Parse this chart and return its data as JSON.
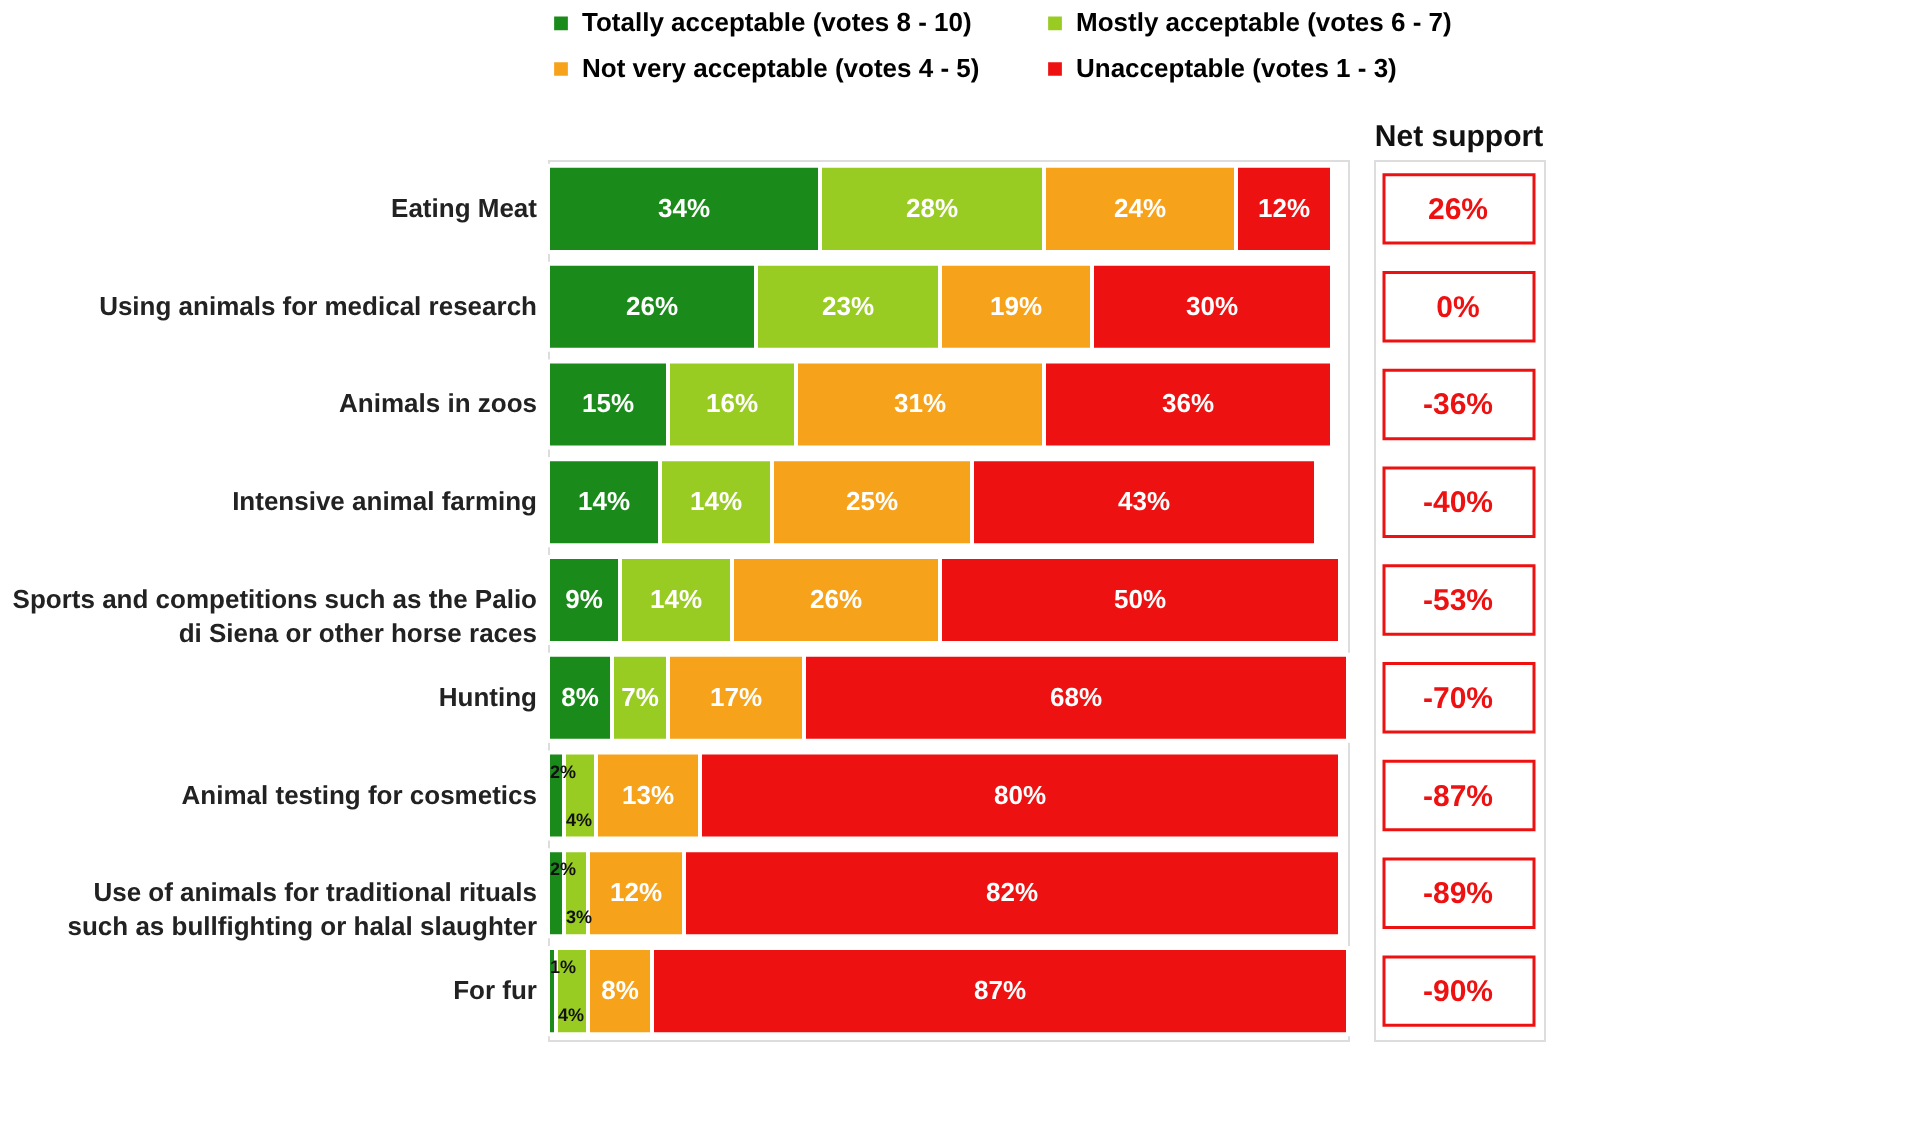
{
  "chart_data": {
    "type": "bar",
    "orientation": "horizontal",
    "stacked": true,
    "legend": "top",
    "grid": false,
    "tick_labels": "y",
    "categories": [
      "Eating Meat",
      "Using animals for medical research",
      "Animals in zoos",
      "Intensive animal farming",
      "Sports and competitions such as the Palio di Siena or other horse races",
      "Hunting",
      "Animal testing for cosmetics",
      "Use of animals for traditional rituals such as bullfighting or halal slaughter",
      "For fur"
    ],
    "series": [
      {
        "name": "Totally acceptable (votes 8 - 10)",
        "color": "#1a8a1a",
        "values": [
          34,
          26,
          15,
          14,
          9,
          8,
          2,
          2,
          1
        ],
        "value_labels": [
          "34%",
          "26%",
          "15%",
          "14%",
          "9%",
          "8%",
          "2%",
          "2%",
          "1%"
        ]
      },
      {
        "name": "Mostly acceptable (votes 6 - 7)",
        "color": "#99cc22",
        "values": [
          28,
          23,
          16,
          14,
          14,
          7,
          4,
          3,
          4
        ],
        "value_labels": [
          "28%",
          "23%",
          "16%",
          "14%",
          "14%",
          "7%",
          "4%",
          "3%",
          "4%"
        ]
      },
      {
        "name": "Not very acceptable (votes 4 - 5)",
        "color": "#f7a21b",
        "values": [
          24,
          19,
          31,
          25,
          26,
          17,
          13,
          12,
          8
        ],
        "value_labels": [
          "24%",
          "19%",
          "31%",
          "25%",
          "26%",
          "17%",
          "13%",
          "12%",
          "8%"
        ]
      },
      {
        "name": "Unacceptable (votes 1 - 3)",
        "color": "#ee1111",
        "values": [
          12,
          30,
          36,
          43,
          50,
          68,
          80,
          82,
          87
        ],
        "value_labels": [
          "12%",
          "30%",
          "36%",
          "43%",
          "50%",
          "68%",
          "80%",
          "82%",
          "87%"
        ]
      }
    ],
    "annotations": [
      "Net support",
      "26%",
      "0%",
      "-36%",
      "-40%",
      "-53%",
      "-70%",
      "-87%",
      "-89%",
      "-90%"
    ]
  }
}
